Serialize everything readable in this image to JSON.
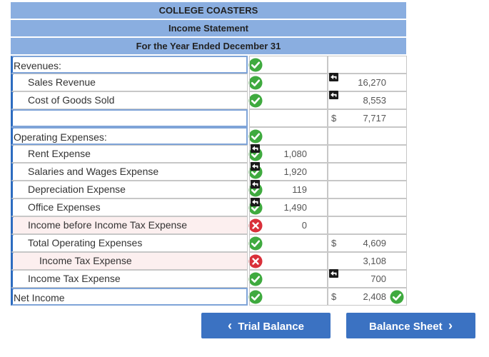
{
  "header": {
    "company": "COLLEGE COASTERS",
    "statement": "Income Statement",
    "period": "For the Year Ended December 31"
  },
  "rows": [
    {
      "label": "Revenues:",
      "status": "ok",
      "amount": "",
      "total": "",
      "currency": ""
    },
    {
      "label": "Sales Revenue",
      "status": "ok",
      "amount": "",
      "total": "16,270",
      "currency": "",
      "undo": "total"
    },
    {
      "label": "Cost of Goods Sold",
      "status": "ok",
      "amount": "",
      "total": "8,553",
      "currency": "",
      "undo": "total"
    },
    {
      "label": "",
      "status": "",
      "amount": "",
      "total": "7,717",
      "currency": "$"
    },
    {
      "label": "Operating Expenses:",
      "status": "ok",
      "amount": "",
      "total": "",
      "currency": ""
    },
    {
      "label": "Rent Expense",
      "status": "ok",
      "amount": "1,080",
      "total": "",
      "currency": "",
      "undo": "amount"
    },
    {
      "label": "Salaries and Wages Expense",
      "status": "ok",
      "amount": "1,920",
      "total": "",
      "currency": "",
      "undo": "amount"
    },
    {
      "label": "Depreciation Expense",
      "status": "ok",
      "amount": "119",
      "total": "",
      "currency": "",
      "undo": "amount"
    },
    {
      "label": "Office Expenses",
      "status": "ok",
      "amount": "1,490",
      "total": "",
      "currency": "",
      "undo": "amount"
    },
    {
      "label": "Income before Income Tax Expense",
      "status": "error",
      "amount": "0",
      "total": "",
      "currency": ""
    },
    {
      "label": "Total Operating Expenses",
      "status": "ok",
      "amount": "",
      "total": "4,609",
      "currency": "$"
    },
    {
      "label": "Income Tax Expense",
      "status": "error",
      "amount": "",
      "total": "3,108",
      "currency": ""
    },
    {
      "label": "Income Tax Expense",
      "status": "ok",
      "amount": "",
      "total": "700",
      "currency": "",
      "undo": "total"
    },
    {
      "label": "Net Income",
      "status": "ok",
      "amount": "",
      "total": "2,408",
      "currency": "$",
      "total_status": "ok"
    }
  ],
  "buttons": {
    "prev": "Trial Balance",
    "next": "Balance Sheet"
  },
  "colors": {
    "header_bg": "#8aaee0",
    "ok": "#3faa3f",
    "error": "#d9303a",
    "button": "#3b72c2"
  }
}
